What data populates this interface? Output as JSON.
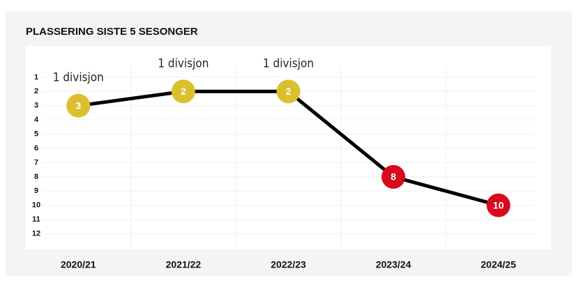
{
  "chart_data": {
    "type": "line",
    "title": "PLASSERING SISTE 5 SESONGER",
    "categories": [
      "2020/21",
      "2021/22",
      "2022/23",
      "2023/24",
      "2024/25"
    ],
    "values": [
      3,
      2,
      2,
      8,
      10
    ],
    "line_color": "#000000",
    "point_colors": [
      "#dcbf2c",
      "#dcbf2c",
      "#dcbf2c",
      "#d70a1e",
      "#d70a1e"
    ],
    "annotations": [
      {
        "category": 0,
        "text": "1 divisjon"
      },
      {
        "category": 1,
        "text": "1 divisjon"
      },
      {
        "category": 2,
        "text": "1 divisjon"
      }
    ],
    "ylim": [
      -1,
      13
    ],
    "y_inverted": true,
    "yticks": [
      1,
      2,
      3,
      4,
      5,
      6,
      7,
      8,
      9,
      10,
      11,
      12
    ],
    "grid": true
  }
}
